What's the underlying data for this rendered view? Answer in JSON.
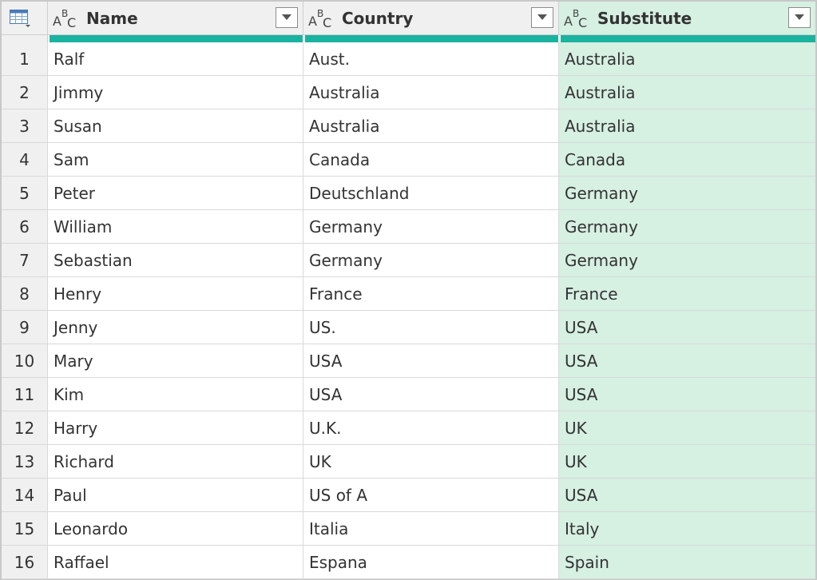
{
  "columns": [
    {
      "title": "Name",
      "type_icon": "text-type-icon"
    },
    {
      "title": "Country",
      "type_icon": "text-type-icon"
    },
    {
      "title": "Substitute",
      "type_icon": "text-type-icon"
    }
  ],
  "rows": [
    {
      "num": "1",
      "name": "Ralf",
      "country": "Aust.",
      "substitute": "Australia"
    },
    {
      "num": "2",
      "name": "Jimmy",
      "country": "Australia",
      "substitute": "Australia"
    },
    {
      "num": "3",
      "name": "Susan",
      "country": "Australia",
      "substitute": "Australia"
    },
    {
      "num": "4",
      "name": "Sam",
      "country": "Canada",
      "substitute": "Canada"
    },
    {
      "num": "5",
      "name": "Peter",
      "country": "Deutschland",
      "substitute": "Germany"
    },
    {
      "num": "6",
      "name": "William",
      "country": "Germany",
      "substitute": "Germany"
    },
    {
      "num": "7",
      "name": "Sebastian",
      "country": "Germany",
      "substitute": "Germany"
    },
    {
      "num": "8",
      "name": "Henry",
      "country": "France",
      "substitute": "France"
    },
    {
      "num": "9",
      "name": "Jenny",
      "country": "US.",
      "substitute": "USA"
    },
    {
      "num": "10",
      "name": "Mary",
      "country": "USA",
      "substitute": "USA"
    },
    {
      "num": "11",
      "name": "Kim",
      "country": "USA",
      "substitute": "USA"
    },
    {
      "num": "12",
      "name": "Harry",
      "country": "U.K.",
      "substitute": "UK"
    },
    {
      "num": "13",
      "name": "Richard",
      "country": "UK",
      "substitute": "UK"
    },
    {
      "num": "14",
      "name": "Paul",
      "country": "US of A",
      "substitute": "USA"
    },
    {
      "num": "15",
      "name": "Leonardo",
      "country": "Italia",
      "substitute": "Italy"
    },
    {
      "num": "16",
      "name": "Raffael",
      "country": "Espana",
      "substitute": "Spain"
    }
  ],
  "colors": {
    "selected_column_bg": "#d6f0e2",
    "column_quality_bar": "#1ab3a0",
    "header_bg": "#f0f0f0"
  }
}
